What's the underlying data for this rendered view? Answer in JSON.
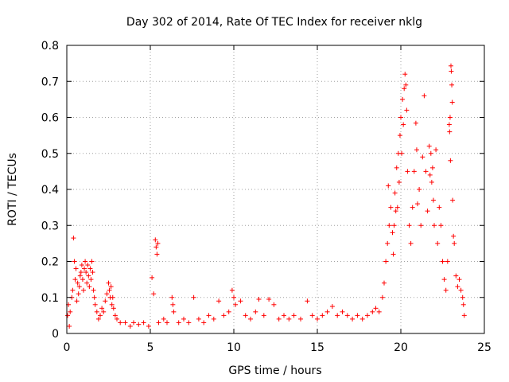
{
  "chart_data": {
    "type": "scatter",
    "title": "Day 302 of 2014, Rate Of TEC Index for receiver nklg",
    "xlabel": "GPS time / hours",
    "ylabel": "ROTI / TECUs",
    "xlim": [
      0,
      25
    ],
    "ylim": [
      0,
      0.8
    ],
    "xticks": [
      0,
      5,
      10,
      15,
      20,
      25
    ],
    "xtick_labels": [
      "0",
      "5",
      "10",
      "15",
      "20",
      "25"
    ],
    "yticks": [
      0,
      0.1,
      0.2,
      0.3,
      0.4,
      0.5,
      0.6,
      0.7,
      0.8
    ],
    "ytick_labels": [
      "0",
      "0.1",
      "0.2",
      "0.3",
      "0.4",
      "0.5",
      "0.6",
      "0.7",
      "0.8"
    ],
    "grid": true,
    "marker": "+",
    "color": "#ff0000",
    "series": [
      {
        "name": "ROTI",
        "points": [
          [
            0.05,
            0.05
          ],
          [
            0.1,
            0.08
          ],
          [
            0.15,
            0.02
          ],
          [
            0.2,
            0.06
          ],
          [
            0.3,
            0.1
          ],
          [
            0.35,
            0.12
          ],
          [
            0.4,
            0.265
          ],
          [
            0.45,
            0.2
          ],
          [
            0.5,
            0.15
          ],
          [
            0.55,
            0.18
          ],
          [
            0.6,
            0.09
          ],
          [
            0.65,
            0.14
          ],
          [
            0.7,
            0.11
          ],
          [
            0.75,
            0.13
          ],
          [
            0.8,
            0.16
          ],
          [
            0.85,
            0.17
          ],
          [
            0.9,
            0.19
          ],
          [
            0.95,
            0.15
          ],
          [
            1.0,
            0.12
          ],
          [
            1.05,
            0.18
          ],
          [
            1.1,
            0.2
          ],
          [
            1.15,
            0.17
          ],
          [
            1.2,
            0.14
          ],
          [
            1.25,
            0.19
          ],
          [
            1.3,
            0.16
          ],
          [
            1.35,
            0.13
          ],
          [
            1.4,
            0.18
          ],
          [
            1.45,
            0.15
          ],
          [
            1.5,
            0.2
          ],
          [
            1.55,
            0.17
          ],
          [
            1.6,
            0.12
          ],
          [
            1.65,
            0.1
          ],
          [
            1.7,
            0.08
          ],
          [
            1.8,
            0.06
          ],
          [
            1.9,
            0.04
          ],
          [
            2.0,
            0.05
          ],
          [
            2.1,
            0.07
          ],
          [
            2.2,
            0.06
          ],
          [
            2.3,
            0.09
          ],
          [
            2.4,
            0.11
          ],
          [
            2.5,
            0.14
          ],
          [
            2.55,
            0.12
          ],
          [
            2.6,
            0.1
          ],
          [
            2.65,
            0.13
          ],
          [
            2.7,
            0.08
          ],
          [
            2.75,
            0.1
          ],
          [
            2.8,
            0.07
          ],
          [
            2.9,
            0.05
          ],
          [
            3.0,
            0.04
          ],
          [
            3.2,
            0.03
          ],
          [
            3.5,
            0.03
          ],
          [
            3.8,
            0.02
          ],
          [
            4.0,
            0.03
          ],
          [
            4.3,
            0.025
          ],
          [
            4.6,
            0.03
          ],
          [
            4.9,
            0.02
          ],
          [
            5.1,
            0.155
          ],
          [
            5.2,
            0.11
          ],
          [
            5.3,
            0.26
          ],
          [
            5.35,
            0.24
          ],
          [
            5.4,
            0.22
          ],
          [
            5.45,
            0.25
          ],
          [
            5.5,
            0.03
          ],
          [
            5.8,
            0.04
          ],
          [
            6.0,
            0.03
          ],
          [
            6.3,
            0.1
          ],
          [
            6.35,
            0.08
          ],
          [
            6.4,
            0.06
          ],
          [
            6.7,
            0.03
          ],
          [
            7.0,
            0.04
          ],
          [
            7.3,
            0.03
          ],
          [
            7.6,
            0.1
          ],
          [
            7.9,
            0.04
          ],
          [
            8.2,
            0.03
          ],
          [
            8.5,
            0.05
          ],
          [
            8.8,
            0.04
          ],
          [
            9.1,
            0.09
          ],
          [
            9.4,
            0.05
          ],
          [
            9.7,
            0.06
          ],
          [
            9.9,
            0.12
          ],
          [
            10.0,
            0.1
          ],
          [
            10.1,
            0.08
          ],
          [
            10.4,
            0.09
          ],
          [
            10.7,
            0.05
          ],
          [
            11.0,
            0.04
          ],
          [
            11.3,
            0.06
          ],
          [
            11.5,
            0.095
          ],
          [
            11.8,
            0.05
          ],
          [
            12.1,
            0.095
          ],
          [
            12.4,
            0.08
          ],
          [
            12.7,
            0.04
          ],
          [
            13.0,
            0.05
          ],
          [
            13.3,
            0.04
          ],
          [
            13.6,
            0.05
          ],
          [
            14.0,
            0.04
          ],
          [
            14.4,
            0.09
          ],
          [
            14.7,
            0.05
          ],
          [
            15.0,
            0.04
          ],
          [
            15.3,
            0.05
          ],
          [
            15.6,
            0.06
          ],
          [
            15.9,
            0.075
          ],
          [
            16.2,
            0.05
          ],
          [
            16.5,
            0.06
          ],
          [
            16.8,
            0.05
          ],
          [
            17.1,
            0.04
          ],
          [
            17.4,
            0.05
          ],
          [
            17.7,
            0.04
          ],
          [
            18.0,
            0.05
          ],
          [
            18.3,
            0.06
          ],
          [
            18.5,
            0.07
          ],
          [
            18.7,
            0.06
          ],
          [
            18.9,
            0.1
          ],
          [
            19.0,
            0.14
          ],
          [
            19.1,
            0.2
          ],
          [
            19.2,
            0.25
          ],
          [
            19.25,
            0.41
          ],
          [
            19.3,
            0.3
          ],
          [
            19.4,
            0.35
          ],
          [
            19.5,
            0.28
          ],
          [
            19.55,
            0.22
          ],
          [
            19.6,
            0.3
          ],
          [
            19.65,
            0.39
          ],
          [
            19.7,
            0.34
          ],
          [
            19.75,
            0.46
          ],
          [
            19.8,
            0.35
          ],
          [
            19.85,
            0.5
          ],
          [
            19.9,
            0.42
          ],
          [
            19.95,
            0.55
          ],
          [
            20.0,
            0.6
          ],
          [
            20.05,
            0.5
          ],
          [
            20.1,
            0.65
          ],
          [
            20.15,
            0.58
          ],
          [
            20.2,
            0.68
          ],
          [
            20.25,
            0.72
          ],
          [
            20.3,
            0.69
          ],
          [
            20.35,
            0.62
          ],
          [
            20.4,
            0.45
          ],
          [
            20.5,
            0.3
          ],
          [
            20.6,
            0.25
          ],
          [
            20.7,
            0.35
          ],
          [
            20.8,
            0.45
          ],
          [
            20.9,
            0.584
          ],
          [
            20.95,
            0.51
          ],
          [
            21.0,
            0.36
          ],
          [
            21.1,
            0.4
          ],
          [
            21.2,
            0.3
          ],
          [
            21.3,
            0.49
          ],
          [
            21.4,
            0.66
          ],
          [
            21.5,
            0.45
          ],
          [
            21.6,
            0.34
          ],
          [
            21.7,
            0.52
          ],
          [
            21.75,
            0.44
          ],
          [
            21.8,
            0.5
          ],
          [
            21.85,
            0.42
          ],
          [
            21.9,
            0.46
          ],
          [
            21.95,
            0.37
          ],
          [
            22.0,
            0.3
          ],
          [
            22.1,
            0.51
          ],
          [
            22.2,
            0.25
          ],
          [
            22.3,
            0.35
          ],
          [
            22.4,
            0.3
          ],
          [
            22.5,
            0.2
          ],
          [
            22.6,
            0.15
          ],
          [
            22.7,
            0.12
          ],
          [
            22.8,
            0.2
          ],
          [
            22.9,
            0.58
          ],
          [
            22.92,
            0.56
          ],
          [
            22.95,
            0.6
          ],
          [
            22.97,
            0.48
          ],
          [
            23.0,
            0.743
          ],
          [
            23.02,
            0.728
          ],
          [
            23.05,
            0.69
          ],
          [
            23.08,
            0.642
          ],
          [
            23.1,
            0.37
          ],
          [
            23.15,
            0.27
          ],
          [
            23.2,
            0.25
          ],
          [
            23.3,
            0.16
          ],
          [
            23.4,
            0.13
          ],
          [
            23.5,
            0.15
          ],
          [
            23.6,
            0.12
          ],
          [
            23.7,
            0.1
          ],
          [
            23.75,
            0.08
          ],
          [
            23.8,
            0.05
          ]
        ]
      }
    ]
  }
}
